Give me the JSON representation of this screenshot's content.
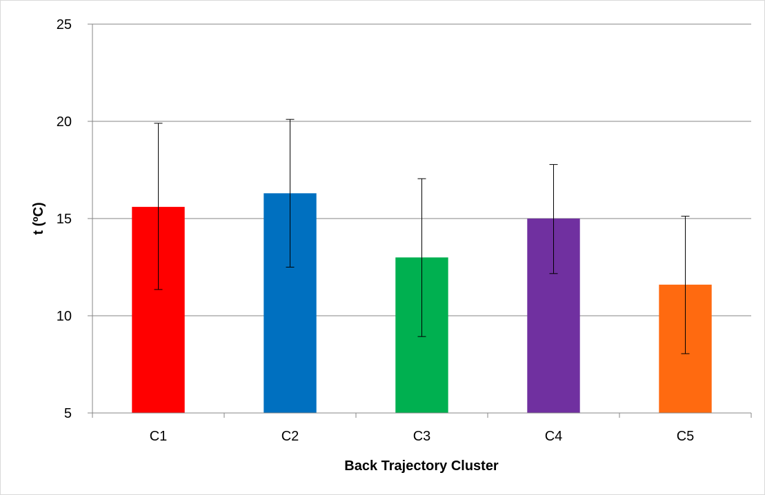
{
  "chart_data": {
    "type": "bar",
    "title": "",
    "xlabel": "Back Trajectory Cluster",
    "ylabel": "t (ºC)",
    "categories": [
      "C1",
      "C2",
      "C3",
      "C4",
      "C5"
    ],
    "values": [
      15.6,
      16.3,
      13.0,
      15.0,
      11.6
    ],
    "error_bars": {
      "upper": [
        19.9,
        20.1,
        17.05,
        17.78,
        15.12
      ],
      "lower": [
        11.35,
        12.5,
        8.93,
        12.17,
        8.05
      ]
    },
    "colors": [
      "#ff0000",
      "#0070c0",
      "#00b050",
      "#7030a0",
      "#ff6a10"
    ],
    "ylim": [
      5,
      25
    ],
    "yticks": [
      "5",
      "10",
      "15",
      "20",
      "25"
    ],
    "grid": true,
    "legend": "none"
  }
}
